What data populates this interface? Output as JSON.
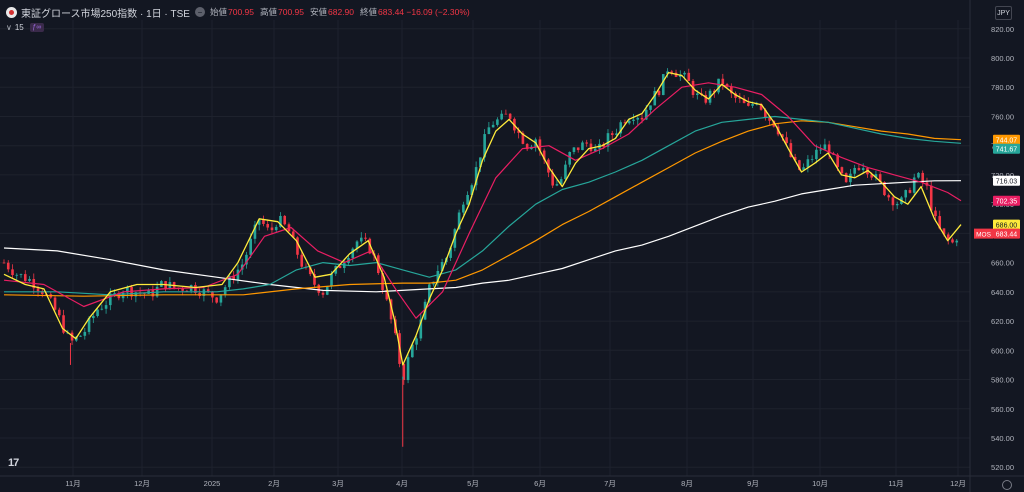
{
  "header": {
    "title": "東証グロース市場250指数 · 1日 · TSE",
    "market_icon": "minus-circle-icon",
    "ohlc": [
      {
        "label": "始値",
        "value": "700.95"
      },
      {
        "label": "高値",
        "value": "700.95"
      },
      {
        "label": "安値",
        "value": "682.90"
      },
      {
        "label": "終値",
        "value": "683.44 −16.09 (−2.30%)"
      }
    ],
    "indicator_count": "15",
    "currency": "JPY"
  },
  "colors": {
    "background": "#131722",
    "up": "#26a69a",
    "down": "#f23645",
    "ma_yellow": "#ffeb3b",
    "ma_pink": "#e91e63",
    "ma_teal": "#26a69a",
    "ma_orange": "#ff9800",
    "ma_white": "#ffffff"
  },
  "chart_data": {
    "type": "line",
    "ylim": [
      514,
      826
    ],
    "y_ticks": [
      "820.00",
      "800.00",
      "780.00",
      "760.00",
      "740.00",
      "720.00",
      "700.00",
      "680.00",
      "660.00",
      "640.00",
      "620.00",
      "600.00",
      "580.00",
      "560.00",
      "540.00",
      "520.00"
    ],
    "x_ticks": [
      "11月",
      "12月",
      "2025",
      "2月",
      "3月",
      "4月",
      "5月",
      "6月",
      "7月",
      "8月",
      "9月",
      "10月",
      "11月",
      "12月"
    ],
    "price_labels": [
      {
        "value": 744.07,
        "text": "744.07",
        "color": "#ff9800"
      },
      {
        "value": 741.67,
        "text": "741.67",
        "color": "#26a69a"
      },
      {
        "value": 716.03,
        "text": "716.03",
        "color": "#ffffff"
      },
      {
        "value": 702.35,
        "text": "702.35",
        "color": "#e91e63"
      },
      {
        "value": 686.0,
        "text": "686.00",
        "color": "#ffeb3b"
      },
      {
        "value": 683.44,
        "text": "683.44",
        "color": "#f23645",
        "prefix": "MOS"
      }
    ],
    "closes": [
      [
        0,
        660
      ],
      [
        5,
        652
      ],
      [
        10,
        648
      ],
      [
        15,
        640
      ],
      [
        20,
        625
      ],
      [
        25,
        605
      ],
      [
        30,
        612
      ],
      [
        35,
        628
      ],
      [
        40,
        635
      ],
      [
        45,
        642
      ],
      [
        50,
        640
      ],
      [
        55,
        638
      ],
      [
        60,
        646
      ],
      [
        65,
        642
      ],
      [
        70,
        644
      ],
      [
        75,
        640
      ],
      [
        80,
        636
      ],
      [
        85,
        648
      ],
      [
        90,
        660
      ],
      [
        93,
        675
      ],
      [
        96,
        690
      ],
      [
        100,
        680
      ],
      [
        103,
        690
      ],
      [
        107,
        682
      ],
      [
        110,
        668
      ],
      [
        113,
        655
      ],
      [
        117,
        645
      ],
      [
        120,
        640
      ],
      [
        123,
        650
      ],
      [
        127,
        660
      ],
      [
        130,
        668
      ],
      [
        133,
        675
      ],
      [
        137,
        672
      ],
      [
        140,
        660
      ],
      [
        143,
        640
      ],
      [
        147,
        610
      ],
      [
        150,
        580
      ],
      [
        153,
        600
      ],
      [
        157,
        620
      ],
      [
        160,
        642
      ],
      [
        163,
        655
      ],
      [
        167,
        665
      ],
      [
        170,
        685
      ],
      [
        173,
        705
      ],
      [
        177,
        720
      ],
      [
        180,
        740
      ],
      [
        183,
        755
      ],
      [
        187,
        758
      ],
      [
        190,
        762
      ],
      [
        193,
        750
      ],
      [
        197,
        740
      ],
      [
        200,
        745
      ],
      [
        203,
        730
      ],
      [
        207,
        712
      ],
      [
        210,
        718
      ],
      [
        213,
        735
      ],
      [
        217,
        740
      ],
      [
        220,
        742
      ],
      [
        223,
        735
      ],
      [
        227,
        745
      ],
      [
        230,
        750
      ],
      [
        233,
        758
      ],
      [
        237,
        762
      ],
      [
        240,
        760
      ],
      [
        243,
        770
      ],
      [
        247,
        780
      ],
      [
        250,
        795
      ],
      [
        253,
        790
      ],
      [
        257,
        785
      ],
      [
        260,
        775
      ],
      [
        263,
        770
      ],
      [
        267,
        778
      ],
      [
        270,
        785
      ],
      [
        273,
        775
      ],
      [
        277,
        770
      ],
      [
        280,
        765
      ],
      [
        283,
        772
      ],
      [
        287,
        760
      ],
      [
        290,
        755
      ],
      [
        293,
        745
      ],
      [
        297,
        728
      ],
      [
        300,
        722
      ],
      [
        303,
        730
      ],
      [
        307,
        738
      ],
      [
        310,
        740
      ],
      [
        313,
        725
      ],
      [
        317,
        712
      ],
      [
        320,
        725
      ],
      [
        323,
        728
      ],
      [
        327,
        720
      ],
      [
        330,
        712
      ],
      [
        333,
        705
      ],
      [
        337,
        700
      ],
      [
        340,
        708
      ],
      [
        343,
        720
      ],
      [
        347,
        712
      ],
      [
        350,
        690
      ],
      [
        353,
        678
      ],
      [
        357,
        673
      ],
      [
        360,
        683.44
      ]
    ],
    "series": [
      {
        "color": "#ffeb3b",
        "values": [
          [
            0,
            652
          ],
          [
            8,
            645
          ],
          [
            15,
            642
          ],
          [
            22,
            615
          ],
          [
            27,
            608
          ],
          [
            32,
            622
          ],
          [
            40,
            640
          ],
          [
            50,
            645
          ],
          [
            60,
            645
          ],
          [
            72,
            643
          ],
          [
            82,
            645
          ],
          [
            88,
            660
          ],
          [
            96,
            690
          ],
          [
            103,
            688
          ],
          [
            110,
            675
          ],
          [
            117,
            650
          ],
          [
            123,
            652
          ],
          [
            130,
            666
          ],
          [
            137,
            675
          ],
          [
            143,
            650
          ],
          [
            147,
            620
          ],
          [
            150,
            590
          ],
          [
            155,
            610
          ],
          [
            160,
            635
          ],
          [
            165,
            655
          ],
          [
            170,
            680
          ],
          [
            175,
            700
          ],
          [
            180,
            730
          ],
          [
            185,
            750
          ],
          [
            190,
            758
          ],
          [
            195,
            748
          ],
          [
            200,
            742
          ],
          [
            205,
            725
          ],
          [
            210,
            712
          ],
          [
            215,
            728
          ],
          [
            220,
            738
          ],
          [
            225,
            740
          ],
          [
            230,
            745
          ],
          [
            235,
            758
          ],
          [
            240,
            762
          ],
          [
            245,
            775
          ],
          [
            250,
            790
          ],
          [
            255,
            788
          ],
          [
            260,
            778
          ],
          [
            265,
            772
          ],
          [
            270,
            782
          ],
          [
            275,
            775
          ],
          [
            280,
            770
          ],
          [
            285,
            768
          ],
          [
            290,
            755
          ],
          [
            295,
            738
          ],
          [
            300,
            722
          ],
          [
            305,
            728
          ],
          [
            310,
            735
          ],
          [
            315,
            720
          ],
          [
            320,
            718
          ],
          [
            325,
            723
          ],
          [
            330,
            715
          ],
          [
            335,
            705
          ],
          [
            340,
            700
          ],
          [
            345,
            712
          ],
          [
            350,
            690
          ],
          [
            355,
            675
          ],
          [
            360,
            686
          ]
        ]
      },
      {
        "color": "#e91e63",
        "values": [
          [
            0,
            648
          ],
          [
            15,
            645
          ],
          [
            30,
            630
          ],
          [
            45,
            640
          ],
          [
            60,
            642
          ],
          [
            75,
            643
          ],
          [
            88,
            652
          ],
          [
            98,
            678
          ],
          [
            108,
            684
          ],
          [
            118,
            668
          ],
          [
            128,
            660
          ],
          [
            138,
            668
          ],
          [
            148,
            640
          ],
          [
            155,
            622
          ],
          [
            165,
            640
          ],
          [
            175,
            680
          ],
          [
            185,
            718
          ],
          [
            195,
            738
          ],
          [
            205,
            740
          ],
          [
            215,
            730
          ],
          [
            225,
            738
          ],
          [
            235,
            748
          ],
          [
            245,
            765
          ],
          [
            255,
            780
          ],
          [
            265,
            783
          ],
          [
            275,
            780
          ],
          [
            285,
            775
          ],
          [
            295,
            760
          ],
          [
            305,
            740
          ],
          [
            315,
            732
          ],
          [
            325,
            725
          ],
          [
            335,
            720
          ],
          [
            345,
            715
          ],
          [
            355,
            708
          ],
          [
            360,
            702.35
          ]
        ]
      },
      {
        "color": "#26a69a",
        "values": [
          [
            0,
            640
          ],
          [
            20,
            640
          ],
          [
            40,
            638
          ],
          [
            60,
            640
          ],
          [
            80,
            640
          ],
          [
            90,
            642
          ],
          [
            100,
            645
          ],
          [
            110,
            655
          ],
          [
            120,
            660
          ],
          [
            130,
            658
          ],
          [
            140,
            660
          ],
          [
            150,
            655
          ],
          [
            160,
            650
          ],
          [
            170,
            655
          ],
          [
            180,
            668
          ],
          [
            190,
            685
          ],
          [
            200,
            700
          ],
          [
            210,
            710
          ],
          [
            220,
            715
          ],
          [
            230,
            722
          ],
          [
            240,
            730
          ],
          [
            250,
            740
          ],
          [
            260,
            750
          ],
          [
            270,
            756
          ],
          [
            280,
            758
          ],
          [
            290,
            760
          ],
          [
            300,
            758
          ],
          [
            310,
            756
          ],
          [
            320,
            752
          ],
          [
            330,
            748
          ],
          [
            340,
            745
          ],
          [
            350,
            743
          ],
          [
            360,
            741.67
          ]
        ]
      },
      {
        "color": "#ff9800",
        "values": [
          [
            0,
            638
          ],
          [
            30,
            637
          ],
          [
            60,
            638
          ],
          [
            90,
            638
          ],
          [
            110,
            642
          ],
          [
            130,
            645
          ],
          [
            150,
            646
          ],
          [
            160,
            646
          ],
          [
            170,
            648
          ],
          [
            180,
            655
          ],
          [
            190,
            665
          ],
          [
            200,
            675
          ],
          [
            210,
            686
          ],
          [
            220,
            695
          ],
          [
            230,
            705
          ],
          [
            240,
            715
          ],
          [
            250,
            725
          ],
          [
            260,
            735
          ],
          [
            270,
            743
          ],
          [
            280,
            750
          ],
          [
            290,
            755
          ],
          [
            300,
            757
          ],
          [
            310,
            756
          ],
          [
            320,
            753
          ],
          [
            330,
            750
          ],
          [
            340,
            748
          ],
          [
            350,
            745
          ],
          [
            360,
            744.07
          ]
        ]
      },
      {
        "color": "#ffffff",
        "values": [
          [
            0,
            670
          ],
          [
            20,
            668
          ],
          [
            40,
            662
          ],
          [
            60,
            655
          ],
          [
            80,
            650
          ],
          [
            100,
            645
          ],
          [
            120,
            641
          ],
          [
            140,
            640
          ],
          [
            160,
            642
          ],
          [
            170,
            643
          ],
          [
            180,
            646
          ],
          [
            190,
            648
          ],
          [
            200,
            652
          ],
          [
            210,
            656
          ],
          [
            220,
            662
          ],
          [
            230,
            668
          ],
          [
            240,
            672
          ],
          [
            250,
            678
          ],
          [
            260,
            685
          ],
          [
            270,
            692
          ],
          [
            280,
            698
          ],
          [
            290,
            702
          ],
          [
            300,
            707
          ],
          [
            310,
            710
          ],
          [
            320,
            713
          ],
          [
            330,
            714
          ],
          [
            340,
            715
          ],
          [
            350,
            716
          ],
          [
            360,
            716.03
          ]
        ]
      }
    ]
  }
}
